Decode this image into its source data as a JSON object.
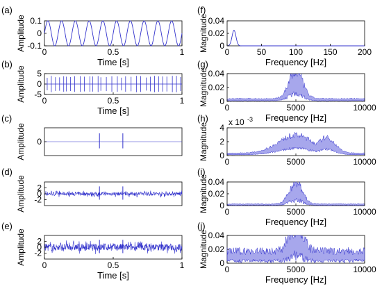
{
  "chart_data": [
    {
      "panel": "(a)",
      "type": "line",
      "xlabel": "Time [s]",
      "ylabel": "Amplitude",
      "xlim": [
        0,
        1
      ],
      "ylim": [
        -0.1,
        0.1
      ],
      "xticks": [
        0,
        0.5,
        1
      ],
      "xtick_labels": [
        "0",
        "0.5",
        "1"
      ],
      "yticks": [
        -0.1,
        0,
        0.1
      ],
      "ytick_labels": [
        "-0.1",
        "0",
        "0.1"
      ],
      "series": [
        {
          "signal": "sine",
          "amplitude": 0.1,
          "frequency_hz": 10,
          "color": "#3333cc"
        }
      ]
    },
    {
      "panel": "(b)",
      "type": "line",
      "xlabel": "Time [s]",
      "ylabel": "Amplitude",
      "xlim": [
        0,
        1
      ],
      "ylim": [
        -5,
        5
      ],
      "xticks": [
        0,
        0.5,
        1
      ],
      "xtick_labels": [
        "0",
        "0.5",
        "1"
      ],
      "yticks": [
        -5,
        0,
        5
      ],
      "ytick_labels": [
        "-5",
        "0",
        "5"
      ],
      "series": [
        {
          "signal": "impulse-train",
          "impulse_times_s": [
            0.02,
            0.05,
            0.08,
            0.11,
            0.14,
            0.16,
            0.19,
            0.22,
            0.26,
            0.29,
            0.33,
            0.35,
            0.39,
            0.41,
            0.45,
            0.49,
            0.53,
            0.56,
            0.59,
            0.63,
            0.67,
            0.7,
            0.74,
            0.77,
            0.8,
            0.83,
            0.86,
            0.89,
            0.93,
            0.96,
            0.99
          ],
          "peak": 4,
          "color": "#3333cc"
        }
      ]
    },
    {
      "panel": "(c)",
      "type": "line",
      "xlabel": "",
      "ylabel": "Amplitude",
      "xlim": [
        0,
        1
      ],
      "ylim": [
        -5,
        5
      ],
      "xticks": [],
      "xtick_labels": [],
      "yticks": [
        0
      ],
      "ytick_labels": [
        "0"
      ],
      "series": [
        {
          "signal": "impulses",
          "impulse_times_s": [
            0.4,
            0.57
          ],
          "peak": 3,
          "color": "#3333cc"
        }
      ]
    },
    {
      "panel": "(d)",
      "type": "line",
      "xlabel": "",
      "ylabel": "Amplitude",
      "xlim": [
        0,
        1
      ],
      "ylim": [
        -4,
        4
      ],
      "xticks": [],
      "xtick_labels": [],
      "yticks": [
        -2,
        0,
        2
      ],
      "ytick_labels": [
        "-2",
        "0",
        "2"
      ],
      "series": [
        {
          "signal": "impulses-with-noise",
          "impulse_times_s": [
            0.4,
            0.57
          ],
          "peak": 2.5,
          "noise": 0.6,
          "color": "#3333cc"
        }
      ]
    },
    {
      "panel": "(e)",
      "type": "line",
      "xlabel": "Time [s]",
      "ylabel": "Amplitude",
      "xlim": [
        0,
        1
      ],
      "ylim": [
        -4,
        4
      ],
      "xticks": [
        0,
        0.5,
        1
      ],
      "xtick_labels": [
        "0",
        "0.5",
        "1"
      ],
      "yticks": [
        -2,
        0,
        2
      ],
      "ytick_labels": [
        "-2",
        "0",
        "2"
      ],
      "series": [
        {
          "signal": "impulses-with-noise",
          "impulse_times_s": [
            0.4,
            0.57
          ],
          "peak": 2.5,
          "noise": 1.2,
          "color": "#3333cc"
        }
      ]
    },
    {
      "panel": "(f)",
      "type": "line",
      "xlabel": "Frequency [Hz]",
      "ylabel": "Magnitude",
      "xlim": [
        0,
        200
      ],
      "ylim": [
        0,
        0.04
      ],
      "xticks": [
        0,
        50,
        100,
        150,
        200
      ],
      "xtick_labels": [
        "0",
        "50",
        "100",
        "150",
        "200"
      ],
      "yticks": [
        0,
        0.02,
        0.04
      ],
      "ytick_labels": [
        "0",
        "0.02",
        "0.04"
      ],
      "series": [
        {
          "signal": "spectrum-peak",
          "peak_hz": 10,
          "peak_value": 0.025,
          "width_hz": 4,
          "color": "#3333cc"
        }
      ]
    },
    {
      "panel": "(g)",
      "type": "area",
      "xlabel": "Frequency [Hz]",
      "ylabel": "Magnitude",
      "xlim": [
        0,
        10000
      ],
      "ylim": [
        0,
        0.04
      ],
      "xticks": [
        0,
        5000,
        10000
      ],
      "xtick_labels": [
        "0",
        "5000",
        "10000"
      ],
      "yticks": [
        0,
        0.02,
        0.04
      ],
      "ytick_labels": [
        "0",
        "0.02",
        "0.04"
      ],
      "series": [
        {
          "signal": "resonance",
          "bands": [
            {
              "center_hz": 5000,
              "value": 0.03,
              "width_hz": 700
            }
          ],
          "floor": 0.003,
          "noise": 0.6,
          "color": "#3333cc"
        }
      ]
    },
    {
      "panel": "(h)",
      "type": "area",
      "xlabel": "",
      "ylabel": "Magnitude",
      "multiplier": "x 10",
      "multiplier_exp": "-3",
      "xlim": [
        0,
        10000
      ],
      "ylim": [
        0,
        4
      ],
      "xticks": [
        0,
        5000,
        10000
      ],
      "xtick_labels": [
        "0",
        "5000",
        "10000"
      ],
      "yticks": [
        0,
        2,
        4
      ],
      "ytick_labels": [
        "0",
        "2",
        "4"
      ],
      "series": [
        {
          "signal": "resonance",
          "bands": [
            {
              "center_hz": 5000,
              "value": 2.2,
              "width_hz": 1800
            },
            {
              "center_hz": 7200,
              "value": 1.9,
              "width_hz": 900
            }
          ],
          "floor": 0.3,
          "noise": 0.35,
          "color": "#3333cc"
        }
      ]
    },
    {
      "panel": "(i)",
      "type": "area",
      "xlabel": "Frequency [Hz]",
      "ylabel": "Magnitude",
      "xlim": [
        0,
        10000
      ],
      "ylim": [
        0,
        0.04
      ],
      "xticks": [
        0,
        5000,
        10000
      ],
      "xtick_labels": [
        "0",
        "5000",
        "10000"
      ],
      "yticks": [
        0,
        0.02,
        0.04
      ],
      "ytick_labels": [
        "0",
        "0.02",
        "0.04"
      ],
      "series": [
        {
          "signal": "resonance",
          "bands": [
            {
              "center_hz": 5000,
              "value": 0.028,
              "width_hz": 650
            }
          ],
          "floor": 0.002,
          "noise": 0.7,
          "color": "#3333cc"
        }
      ]
    },
    {
      "panel": "(j)",
      "type": "area",
      "xlabel": "Frequency [Hz]",
      "ylabel": "Magnitude",
      "xlim": [
        0,
        10000
      ],
      "ylim": [
        0,
        0.04
      ],
      "xticks": [
        0,
        5000,
        10000
      ],
      "xtick_labels": [
        "0",
        "5000",
        "10000"
      ],
      "yticks": [
        0,
        0.02,
        0.04
      ],
      "ytick_labels": [
        "0",
        "0.02",
        "0.04"
      ],
      "series": [
        {
          "signal": "resonance",
          "bands": [
            {
              "center_hz": 5000,
              "value": 0.025,
              "width_hz": 700
            }
          ],
          "floor": 0.012,
          "noise": 0.9,
          "color": "#3333cc"
        }
      ]
    }
  ]
}
